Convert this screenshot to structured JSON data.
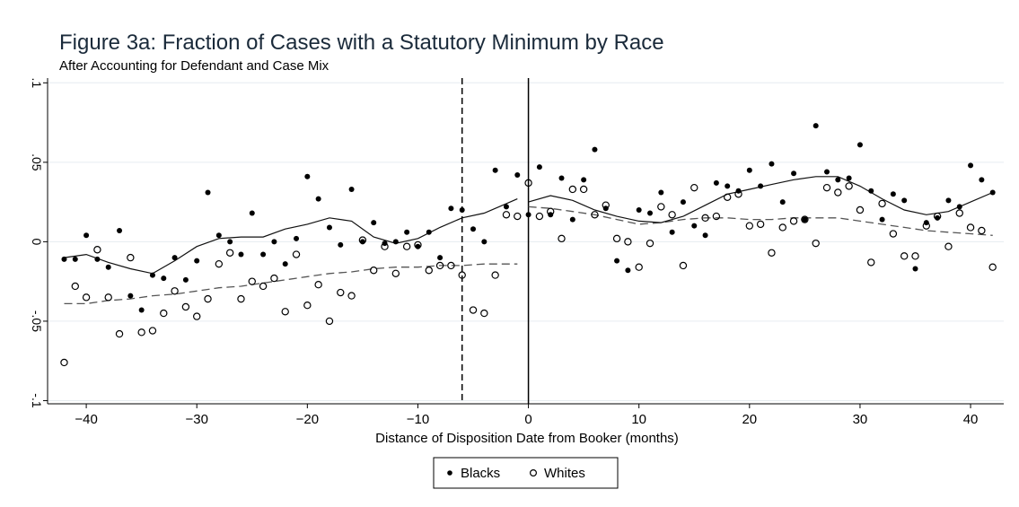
{
  "chart_data": {
    "type": "scatter",
    "title": "Figure 3a: Fraction of Cases with a Statutory Minimum by Race",
    "subtitle": "After Accounting for Defendant and Case Mix",
    "xlabel": "Distance of Disposition Date from Booker (months)",
    "ylabel": "",
    "xlim": [
      -43.5,
      43
    ],
    "ylim": [
      -0.102,
      0.103
    ],
    "xticks": [
      -40,
      -30,
      -20,
      -10,
      0,
      10,
      20,
      30,
      40
    ],
    "xtick_labels": [
      "−40",
      "−30",
      "−20",
      "−10",
      "0",
      "10",
      "20",
      "30",
      "40"
    ],
    "yticks": [
      -0.1,
      -0.05,
      0,
      0.05,
      0.1
    ],
    "ytick_labels": [
      "-.1",
      "-.05",
      "0",
      ".05",
      ".1"
    ],
    "grid": "horizontal",
    "legend_position": "bottom-center",
    "vlines": [
      {
        "x": -6,
        "style": "dashed"
      },
      {
        "x": 0,
        "style": "solid"
      }
    ],
    "series": [
      {
        "name": "Blacks",
        "marker": "filled-circle",
        "points": [
          [
            -42,
            -0.011
          ],
          [
            -41,
            -0.011
          ],
          [
            -40,
            0.004
          ],
          [
            -39,
            -0.011
          ],
          [
            -38,
            -0.016
          ],
          [
            -37,
            0.007
          ],
          [
            -36,
            -0.034
          ],
          [
            -35,
            -0.043
          ],
          [
            -34,
            -0.021
          ],
          [
            -33,
            -0.023
          ],
          [
            -32,
            -0.01
          ],
          [
            -31,
            -0.024
          ],
          [
            -30,
            -0.012
          ],
          [
            -29,
            0.031
          ],
          [
            -28,
            0.004
          ],
          [
            -27,
            0
          ],
          [
            -26,
            -0.008
          ],
          [
            -25,
            0.018
          ],
          [
            -24,
            -0.008
          ],
          [
            -23,
            0
          ],
          [
            -22,
            -0.014
          ],
          [
            -21,
            0.002
          ],
          [
            -20,
            0.041
          ],
          [
            -19,
            0.027
          ],
          [
            -18,
            0.009
          ],
          [
            -17,
            -0.002
          ],
          [
            -16,
            0.033
          ],
          [
            -15,
            0
          ],
          [
            -14,
            0.012
          ],
          [
            -13,
            -0.001
          ],
          [
            -12,
            0
          ],
          [
            -11,
            0.006
          ],
          [
            -10,
            -0.003
          ],
          [
            -9,
            0.006
          ],
          [
            -8,
            -0.01
          ],
          [
            -7,
            0.021
          ],
          [
            -6,
            0.02
          ],
          [
            -5,
            0.008
          ],
          [
            -4,
            0
          ],
          [
            -3,
            0.045
          ],
          [
            -2,
            0.022
          ],
          [
            -1,
            0.042
          ],
          [
            0,
            0.017
          ],
          [
            1,
            0.047
          ],
          [
            2,
            0.017
          ],
          [
            3,
            0.04
          ],
          [
            4,
            0.014
          ],
          [
            5,
            0.039
          ],
          [
            6,
            0.058
          ],
          [
            7,
            0.021
          ],
          [
            8,
            -0.012
          ],
          [
            9,
            -0.018
          ],
          [
            10,
            0.02
          ],
          [
            11,
            0.018
          ],
          [
            12,
            0.031
          ],
          [
            13,
            0.006
          ],
          [
            14,
            0.025
          ],
          [
            15,
            0.01
          ],
          [
            16,
            0.004
          ],
          [
            17,
            0.037
          ],
          [
            18,
            0.035
          ],
          [
            19,
            0.032
          ],
          [
            20,
            0.045
          ],
          [
            21,
            0.035
          ],
          [
            22,
            0.049
          ],
          [
            23,
            0.025
          ],
          [
            24,
            0.043
          ],
          [
            25,
            0.014
          ],
          [
            26,
            0.073
          ],
          [
            27,
            0.044
          ],
          [
            28,
            0.039
          ],
          [
            29,
            0.04
          ],
          [
            30,
            0.061
          ],
          [
            31,
            0.032
          ],
          [
            32,
            0.014
          ],
          [
            33,
            0.03
          ],
          [
            34,
            0.026
          ],
          [
            35,
            -0.017
          ],
          [
            36,
            0.012
          ],
          [
            37,
            0.015
          ],
          [
            38,
            0.026
          ],
          [
            39,
            0.022
          ],
          [
            40,
            0.048
          ],
          [
            41,
            0.039
          ],
          [
            42,
            0.031
          ]
        ],
        "trend": [
          [
            -42,
            -0.01
          ],
          [
            -40,
            -0.008
          ],
          [
            -38,
            -0.013
          ],
          [
            -36,
            -0.017
          ],
          [
            -34,
            -0.02
          ],
          [
            -32,
            -0.012
          ],
          [
            -30,
            -0.003
          ],
          [
            -28,
            0.002
          ],
          [
            -26,
            0.003
          ],
          [
            -24,
            0.003
          ],
          [
            -22,
            0.008
          ],
          [
            -20,
            0.011
          ],
          [
            -18,
            0.015
          ],
          [
            -16,
            0.013
          ],
          [
            -14,
            0.003
          ],
          [
            -12,
            -0.001
          ],
          [
            -10,
            0.002
          ],
          [
            -8,
            0.009
          ],
          [
            -6,
            0.015
          ],
          [
            -4,
            0.018
          ],
          [
            -2,
            0.024
          ],
          [
            -1,
            0.027
          ],
          [
            0,
            0.025
          ],
          [
            2,
            0.029
          ],
          [
            4,
            0.026
          ],
          [
            6,
            0.02
          ],
          [
            8,
            0.016
          ],
          [
            10,
            0.013
          ],
          [
            12,
            0.012
          ],
          [
            14,
            0.016
          ],
          [
            16,
            0.023
          ],
          [
            18,
            0.03
          ],
          [
            20,
            0.033
          ],
          [
            22,
            0.036
          ],
          [
            24,
            0.039
          ],
          [
            26,
            0.041
          ],
          [
            28,
            0.041
          ],
          [
            30,
            0.035
          ],
          [
            32,
            0.027
          ],
          [
            34,
            0.02
          ],
          [
            36,
            0.017
          ],
          [
            38,
            0.019
          ],
          [
            40,
            0.025
          ],
          [
            42,
            0.031
          ]
        ]
      },
      {
        "name": "Whites",
        "marker": "hollow-circle",
        "points": [
          [
            -42,
            -0.076
          ],
          [
            -41,
            -0.028
          ],
          [
            -40,
            -0.035
          ],
          [
            -39,
            -0.005
          ],
          [
            -38,
            -0.035
          ],
          [
            -37,
            -0.058
          ],
          [
            -36,
            -0.01
          ],
          [
            -35,
            -0.057
          ],
          [
            -34,
            -0.056
          ],
          [
            -33,
            -0.045
          ],
          [
            -32,
            -0.031
          ],
          [
            -31,
            -0.041
          ],
          [
            -30,
            -0.047
          ],
          [
            -29,
            -0.036
          ],
          [
            -28,
            -0.014
          ],
          [
            -27,
            -0.007
          ],
          [
            -26,
            -0.036
          ],
          [
            -25,
            -0.025
          ],
          [
            -24,
            -0.028
          ],
          [
            -23,
            -0.023
          ],
          [
            -22,
            -0.044
          ],
          [
            -21,
            -0.008
          ],
          [
            -20,
            -0.04
          ],
          [
            -19,
            -0.027
          ],
          [
            -18,
            -0.05
          ],
          [
            -17,
            -0.032
          ],
          [
            -16,
            -0.034
          ],
          [
            -15,
            0.001
          ],
          [
            -14,
            -0.018
          ],
          [
            -13,
            -0.003
          ],
          [
            -12,
            -0.02
          ],
          [
            -11,
            -0.003
          ],
          [
            -10,
            -0.002
          ],
          [
            -9,
            -0.018
          ],
          [
            -8,
            -0.015
          ],
          [
            -7,
            -0.015
          ],
          [
            -6,
            -0.021
          ],
          [
            -5,
            -0.043
          ],
          [
            -4,
            -0.045
          ],
          [
            -3,
            -0.021
          ],
          [
            -2,
            0.017
          ],
          [
            -1,
            0.016
          ],
          [
            0,
            0.037
          ],
          [
            1,
            0.016
          ],
          [
            2,
            0.019
          ],
          [
            3,
            0.002
          ],
          [
            4,
            0.033
          ],
          [
            5,
            0.033
          ],
          [
            6,
            0.017
          ],
          [
            7,
            0.023
          ],
          [
            8,
            0.002
          ],
          [
            9,
            0
          ],
          [
            10,
            -0.016
          ],
          [
            11,
            -0.001
          ],
          [
            12,
            0.022
          ],
          [
            13,
            0.017
          ],
          [
            14,
            -0.015
          ],
          [
            15,
            0.034
          ],
          [
            16,
            0.015
          ],
          [
            17,
            0.016
          ],
          [
            18,
            0.028
          ],
          [
            19,
            0.03
          ],
          [
            20,
            0.01
          ],
          [
            21,
            0.011
          ],
          [
            22,
            -0.007
          ],
          [
            23,
            0.009
          ],
          [
            24,
            0.013
          ],
          [
            25,
            0.014
          ],
          [
            26,
            -0.001
          ],
          [
            27,
            0.034
          ],
          [
            28,
            0.031
          ],
          [
            29,
            0.035
          ],
          [
            30,
            0.02
          ],
          [
            31,
            -0.013
          ],
          [
            32,
            0.024
          ],
          [
            33,
            0.005
          ],
          [
            34,
            -0.009
          ],
          [
            35,
            -0.009
          ],
          [
            36,
            0.01
          ],
          [
            37,
            0.016
          ],
          [
            38,
            -0.003
          ],
          [
            39,
            0.018
          ],
          [
            40,
            0.009
          ],
          [
            41,
            0.007
          ],
          [
            42,
            -0.016
          ]
        ],
        "trend": [
          [
            -42,
            -0.039
          ],
          [
            -40,
            -0.039
          ],
          [
            -38,
            -0.037
          ],
          [
            -36,
            -0.036
          ],
          [
            -34,
            -0.034
          ],
          [
            -32,
            -0.033
          ],
          [
            -30,
            -0.031
          ],
          [
            -28,
            -0.029
          ],
          [
            -26,
            -0.028
          ],
          [
            -24,
            -0.026
          ],
          [
            -22,
            -0.024
          ],
          [
            -20,
            -0.022
          ],
          [
            -18,
            -0.02
          ],
          [
            -16,
            -0.019
          ],
          [
            -14,
            -0.017
          ],
          [
            -12,
            -0.016
          ],
          [
            -10,
            -0.016
          ],
          [
            -8,
            -0.015
          ],
          [
            -6,
            -0.015
          ],
          [
            -4,
            -0.014
          ],
          [
            -2,
            -0.014
          ],
          [
            -1,
            -0.014
          ],
          [
            0,
            0.022
          ],
          [
            2,
            0.021
          ],
          [
            4,
            0.019
          ],
          [
            6,
            0.017
          ],
          [
            8,
            0.014
          ],
          [
            10,
            0.011
          ],
          [
            12,
            0.012
          ],
          [
            14,
            0.014
          ],
          [
            16,
            0.015
          ],
          [
            18,
            0.015
          ],
          [
            20,
            0.014
          ],
          [
            22,
            0.014
          ],
          [
            24,
            0.015
          ],
          [
            26,
            0.015
          ],
          [
            28,
            0.015
          ],
          [
            30,
            0.013
          ],
          [
            32,
            0.011
          ],
          [
            34,
            0.009
          ],
          [
            36,
            0.007
          ],
          [
            38,
            0.006
          ],
          [
            40,
            0.005
          ],
          [
            42,
            0.004
          ]
        ]
      }
    ]
  }
}
